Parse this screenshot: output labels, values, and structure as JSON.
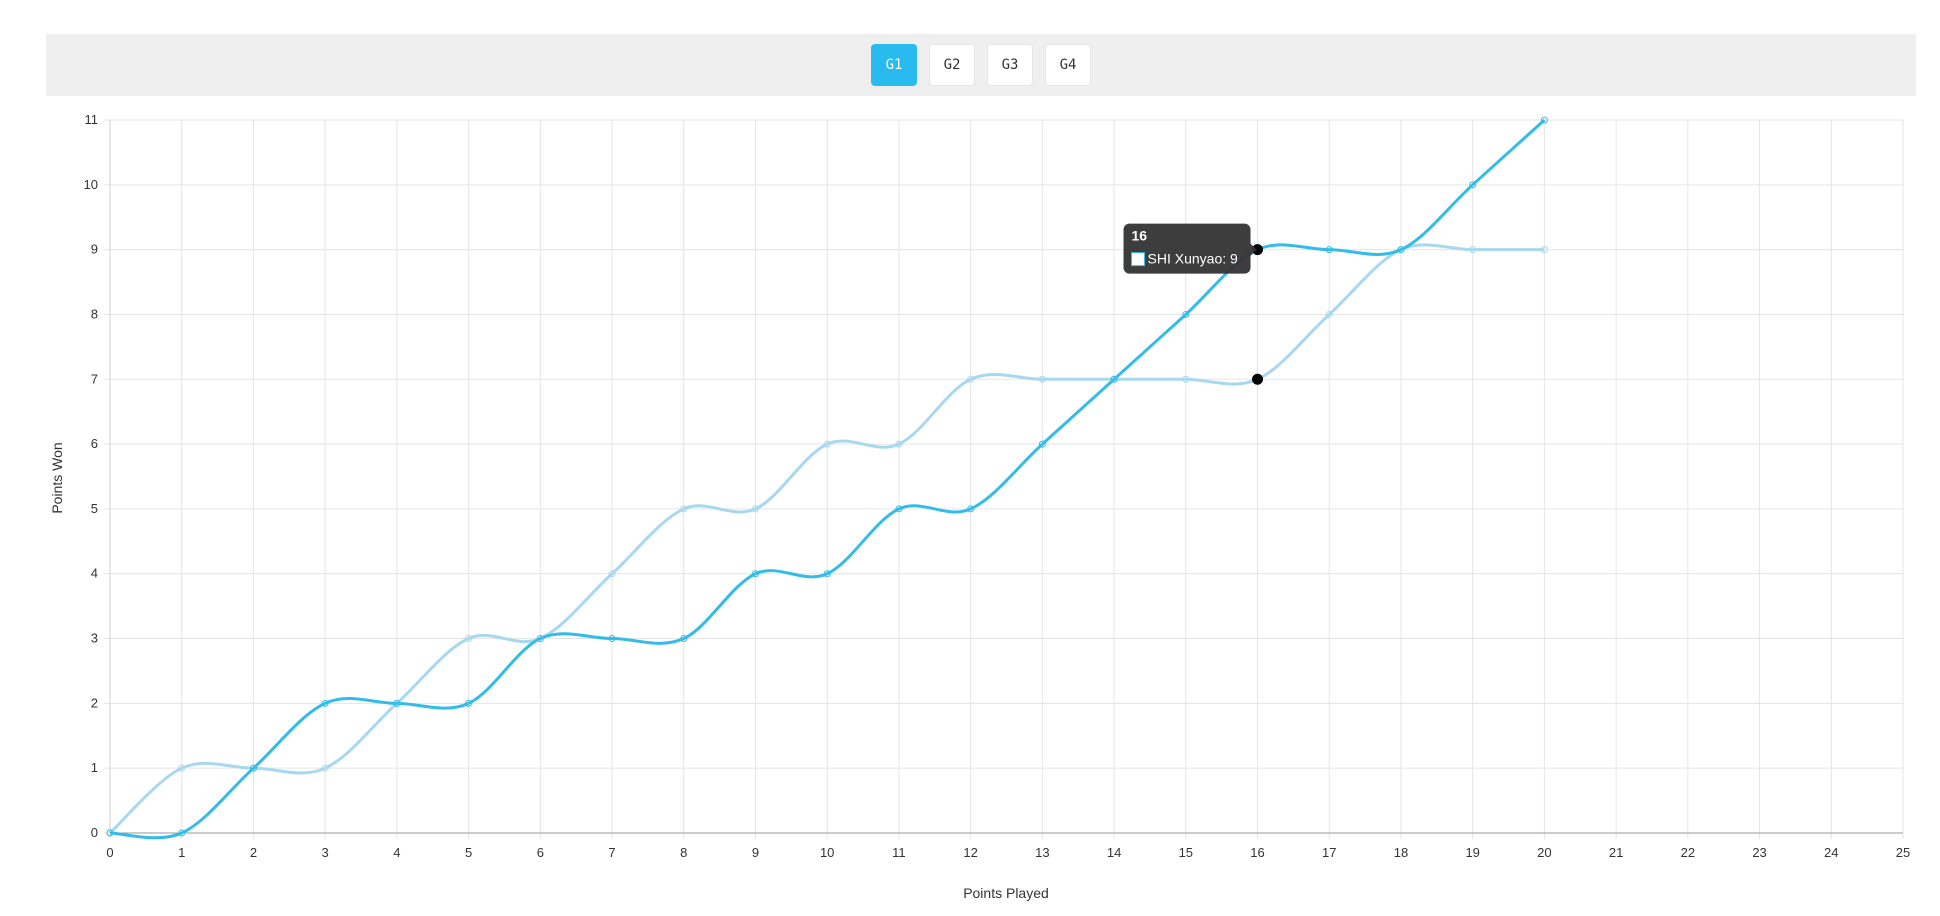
{
  "tabs": [
    {
      "label": "G1",
      "active": true
    },
    {
      "label": "G2",
      "active": false
    },
    {
      "label": "G3",
      "active": false
    },
    {
      "label": "G4",
      "active": false
    }
  ],
  "colors": {
    "tab_active": "#29baf0",
    "series_main": "#33bce8",
    "series_light": "#a8d8f0",
    "tooltip_bg": "#333333"
  },
  "tooltip": {
    "title": "16",
    "label": "SHI Xunyao: 9",
    "series_index": 0,
    "x": 16
  },
  "chart_data": {
    "type": "line",
    "xlabel": "Points Played",
    "ylabel": "Points Won",
    "xlim": [
      0,
      25
    ],
    "ylim": [
      0,
      11
    ],
    "xticks": [
      "0",
      "1",
      "2",
      "3",
      "4",
      "5",
      "6",
      "7",
      "8",
      "9",
      "10",
      "11",
      "12",
      "13",
      "14",
      "15",
      "16",
      "17",
      "18",
      "19",
      "20",
      "21",
      "22",
      "23",
      "24",
      "25"
    ],
    "yticks": [
      "0",
      "1",
      "2",
      "3",
      "4",
      "5",
      "6",
      "7",
      "8",
      "9",
      "10",
      "11"
    ],
    "grid": true,
    "series": [
      {
        "name": "SHI Xunyao",
        "x": [
          0,
          1,
          2,
          3,
          4,
          5,
          6,
          7,
          8,
          9,
          10,
          11,
          12,
          13,
          14,
          15,
          16,
          17,
          18,
          19,
          20
        ],
        "values": [
          0,
          0,
          1,
          2,
          2,
          2,
          3,
          3,
          3,
          4,
          4,
          5,
          5,
          6,
          7,
          8,
          9,
          9,
          9,
          10,
          11
        ]
      },
      {
        "x": [
          0,
          1,
          2,
          3,
          4,
          5,
          6,
          7,
          8,
          9,
          10,
          11,
          12,
          13,
          14,
          15,
          16,
          17,
          18,
          19,
          20
        ],
        "values": [
          0,
          1,
          1,
          1,
          2,
          3,
          3,
          4,
          5,
          5,
          6,
          6,
          7,
          7,
          7,
          7,
          7,
          8,
          9,
          9,
          9
        ]
      }
    ]
  }
}
